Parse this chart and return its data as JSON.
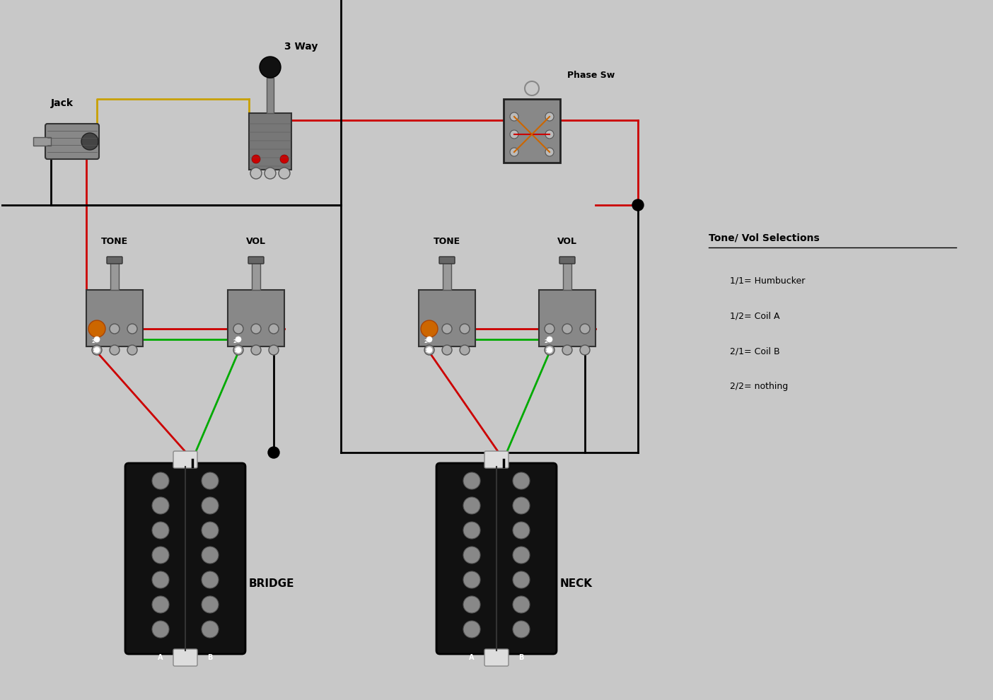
{
  "bg_color": "#c8c8c8",
  "fig_width": 14.04,
  "fig_height": 9.9,
  "legend_title": "Tone/ Vol Selections",
  "legend_items": [
    "1/1= Humbucker",
    "1/2= Coil A",
    "2/1= Coil B",
    "2/2= nothing"
  ],
  "labels": {
    "jack": "Jack",
    "way3": "3 Way",
    "phase": "Phase Sw",
    "tone1": "TONE",
    "vol1": "VOL",
    "tone2": "TONE",
    "vol2": "VOL",
    "bridge": "BRIDGE",
    "neck": "NECK"
  },
  "colors": {
    "bg": "#c8c8c8",
    "black": "#000000",
    "red": "#cc0000",
    "green": "#00aa00",
    "orange": "#cc6600",
    "tan": "#c8a000",
    "white": "#ffffff",
    "gray_dark": "#555555",
    "gray_mid": "#888888",
    "gray_light": "#aaaaaa"
  }
}
